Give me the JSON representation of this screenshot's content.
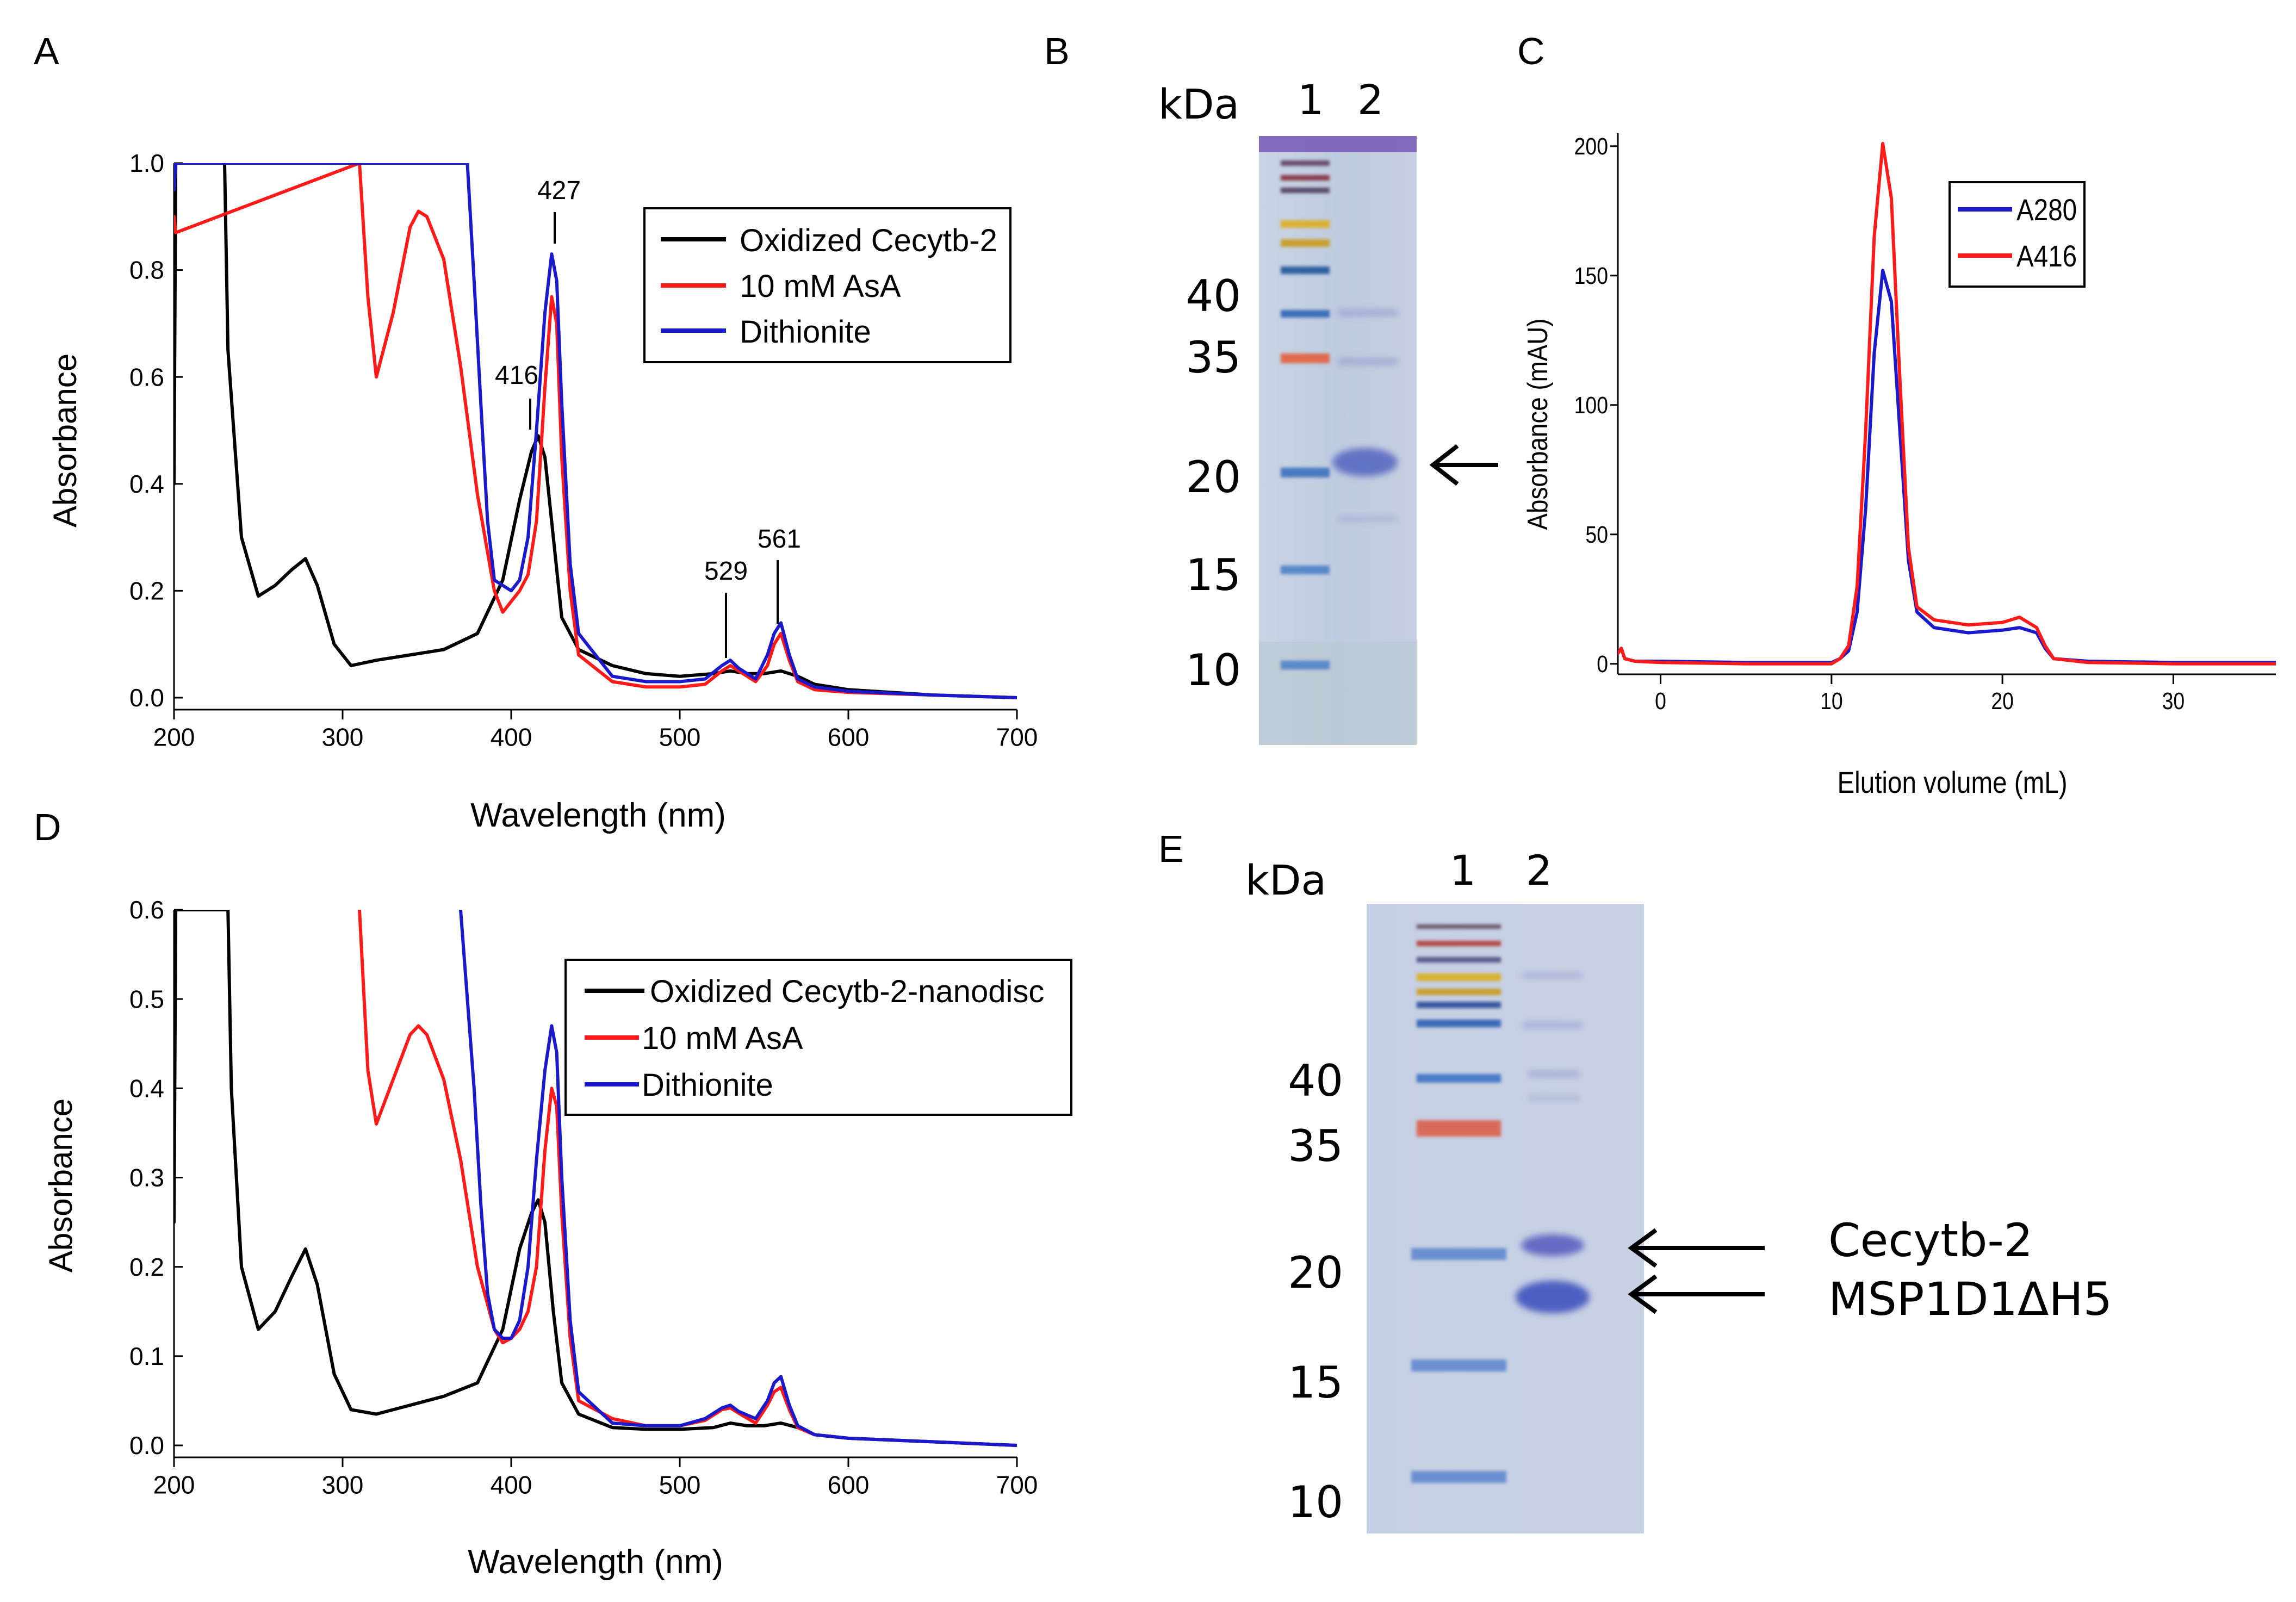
{
  "figure": {
    "panels": {
      "A": {
        "label": "A"
      },
      "B": {
        "label": "B",
        "kda_label": "kDa",
        "lanes": [
          "1",
          "2"
        ],
        "markers": [
          "40",
          "35",
          "20",
          "15",
          "10"
        ]
      },
      "C": {
        "label": "C"
      },
      "D": {
        "label": "D"
      },
      "E": {
        "label": "E",
        "kda_label": "kDa",
        "lanes": [
          "1",
          "2"
        ],
        "markers": [
          "40",
          "35",
          "20",
          "15",
          "10"
        ],
        "arrow_labels": [
          "Cecytb-2",
          "MSP1D1ΔH5"
        ]
      }
    }
  },
  "chart_data": [
    {
      "id": "A",
      "type": "line",
      "xlabel": "Wavelength (nm)",
      "ylabel": "Absorbance",
      "xlim": [
        200,
        700
      ],
      "ylim": [
        0,
        1.0
      ],
      "xticks": [
        "200",
        "300",
        "400",
        "500",
        "600",
        "700"
      ],
      "yticks": [
        "0.0",
        "0.2",
        "0.4",
        "0.6",
        "0.8",
        "1.0"
      ],
      "legend": [
        "Oxidized Cecytb-2",
        "10 mM AsA",
        "Dithionite"
      ],
      "annotations": [
        "416",
        "427",
        "529",
        "561"
      ],
      "series": [
        {
          "name": "Oxidized Cecytb-2",
          "color": "#000000",
          "x": [
            200,
            201,
            202,
            203,
            230,
            232,
            240,
            250,
            260,
            270,
            278,
            285,
            295,
            305,
            320,
            340,
            360,
            380,
            395,
            405,
            412,
            416,
            420,
            425,
            430,
            440,
            460,
            480,
            500,
            520,
            530,
            540,
            550,
            560,
            570,
            580,
            600,
            650,
            700
          ],
          "y": [
            0.4,
            1.0,
            1.0,
            1.0,
            1.0,
            0.65,
            0.3,
            0.19,
            0.21,
            0.24,
            0.26,
            0.21,
            0.1,
            0.06,
            0.07,
            0.08,
            0.09,
            0.12,
            0.22,
            0.37,
            0.46,
            0.49,
            0.45,
            0.3,
            0.15,
            0.09,
            0.06,
            0.045,
            0.04,
            0.045,
            0.05,
            0.045,
            0.045,
            0.05,
            0.04,
            0.025,
            0.015,
            0.005,
            0.0
          ]
        },
        {
          "name": "10 mM AsA",
          "color": "#ff1a1a",
          "x": [
            200,
            201,
            310,
            315,
            320,
            330,
            340,
            345,
            350,
            360,
            370,
            380,
            390,
            395,
            400,
            405,
            410,
            415,
            420,
            424,
            427,
            430,
            435,
            440,
            460,
            480,
            500,
            515,
            525,
            530,
            535,
            545,
            552,
            556,
            560,
            565,
            570,
            580,
            600,
            650,
            700
          ],
          "y": [
            0.9,
            0.87,
            1.0,
            0.75,
            0.6,
            0.72,
            0.88,
            0.91,
            0.9,
            0.82,
            0.62,
            0.38,
            0.2,
            0.16,
            0.18,
            0.2,
            0.23,
            0.33,
            0.58,
            0.75,
            0.7,
            0.45,
            0.2,
            0.08,
            0.03,
            0.02,
            0.02,
            0.025,
            0.05,
            0.06,
            0.05,
            0.03,
            0.06,
            0.1,
            0.12,
            0.07,
            0.03,
            0.015,
            0.01,
            0.005,
            0.0
          ]
        },
        {
          "name": "Dithionite",
          "color": "#1a1acc",
          "x": [
            200,
            201,
            374,
            378,
            382,
            386,
            390,
            395,
            400,
            405,
            410,
            415,
            420,
            424,
            427,
            430,
            435,
            440,
            460,
            480,
            500,
            515,
            525,
            530,
            535,
            545,
            552,
            556,
            560,
            565,
            570,
            580,
            600,
            650,
            700
          ],
          "y": [
            0.95,
            1.0,
            1.0,
            0.78,
            0.55,
            0.33,
            0.22,
            0.21,
            0.2,
            0.22,
            0.3,
            0.5,
            0.72,
            0.83,
            0.78,
            0.55,
            0.25,
            0.12,
            0.04,
            0.03,
            0.03,
            0.035,
            0.06,
            0.07,
            0.055,
            0.035,
            0.08,
            0.12,
            0.14,
            0.08,
            0.035,
            0.02,
            0.012,
            0.005,
            0.0
          ]
        }
      ]
    },
    {
      "id": "C",
      "type": "line",
      "xlabel": "Elution volume (mL)",
      "ylabel": "Absorbance (mAU)",
      "xlim": [
        -2.5,
        36
      ],
      "ylim": [
        -3,
        205
      ],
      "xticks": [
        "0",
        "10",
        "20",
        "30"
      ],
      "yticks": [
        "0",
        "50",
        "100",
        "150",
        "200"
      ],
      "legend": [
        "A280",
        "A416"
      ],
      "series": [
        {
          "name": "A280",
          "color": "#1a1acc",
          "x": [
            -2.5,
            -2.3,
            -2.1,
            -1.5,
            0,
            5,
            10,
            10.5,
            11,
            11.5,
            12,
            12.5,
            13,
            13.5,
            14,
            14.5,
            15,
            16,
            18,
            20,
            21,
            22,
            22.5,
            23,
            25,
            30,
            36
          ],
          "y": [
            4,
            6,
            2,
            1,
            1,
            0.5,
            0.5,
            2,
            5,
            20,
            60,
            120,
            152,
            140,
            90,
            40,
            20,
            14,
            12,
            13,
            14,
            12,
            6,
            2,
            1,
            0.5,
            0.5
          ]
        },
        {
          "name": "A416",
          "color": "#ff1a1a",
          "x": [
            -2.5,
            -2.3,
            -2.1,
            -1.5,
            0,
            5,
            10,
            10.5,
            11,
            11.5,
            12,
            12.5,
            13,
            13.5,
            14,
            14.5,
            15,
            16,
            18,
            20,
            21,
            22,
            22.5,
            23,
            25,
            30,
            36
          ],
          "y": [
            4,
            6,
            2,
            1,
            0.5,
            0,
            0,
            2,
            7,
            30,
            90,
            165,
            201,
            180,
            110,
            45,
            22,
            17,
            15,
            16,
            18,
            14,
            7,
            2,
            0.5,
            0,
            0
          ]
        }
      ]
    },
    {
      "id": "D",
      "type": "line",
      "xlabel": "Wavelength (nm)",
      "ylabel": "Absorbance",
      "xlim": [
        200,
        700
      ],
      "ylim": [
        0,
        0.6
      ],
      "xticks": [
        "200",
        "300",
        "400",
        "500",
        "600",
        "700"
      ],
      "yticks": [
        "0.0",
        "0.1",
        "0.2",
        "0.3",
        "0.4",
        "0.5",
        "0.6"
      ],
      "legend": [
        "Oxidized Cecytb-2-nanodisc",
        "10 mM AsA",
        "Dithionite"
      ],
      "series": [
        {
          "name": "Oxidized Cecytb-2-nanodisc",
          "color": "#000000",
          "x": [
            200,
            201,
            202,
            203,
            232,
            234,
            240,
            250,
            260,
            270,
            278,
            285,
            295,
            305,
            320,
            340,
            360,
            380,
            395,
            405,
            412,
            416,
            420,
            425,
            430,
            440,
            460,
            480,
            500,
            520,
            530,
            540,
            550,
            560,
            570,
            580,
            600,
            650,
            700
          ],
          "y": [
            0.25,
            0.6,
            0.6,
            0.6,
            0.6,
            0.4,
            0.2,
            0.13,
            0.15,
            0.19,
            0.22,
            0.18,
            0.08,
            0.04,
            0.035,
            0.045,
            0.055,
            0.07,
            0.13,
            0.22,
            0.26,
            0.275,
            0.25,
            0.15,
            0.07,
            0.035,
            0.02,
            0.018,
            0.018,
            0.02,
            0.025,
            0.022,
            0.022,
            0.025,
            0.02,
            0.012,
            0.008,
            0.004,
            0.0
          ]
        },
        {
          "name": "10 mM AsA",
          "color": "#ff1a1a",
          "x": [
            310,
            315,
            320,
            330,
            340,
            345,
            350,
            360,
            370,
            380,
            390,
            395,
            400,
            405,
            410,
            415,
            420,
            424,
            427,
            430,
            435,
            440,
            460,
            480,
            500,
            515,
            525,
            530,
            535,
            545,
            552,
            556,
            560,
            565,
            570,
            580,
            600,
            650,
            700
          ],
          "y": [
            0.6,
            0.42,
            0.36,
            0.41,
            0.46,
            0.47,
            0.46,
            0.41,
            0.32,
            0.2,
            0.13,
            0.115,
            0.12,
            0.13,
            0.15,
            0.2,
            0.33,
            0.4,
            0.38,
            0.26,
            0.12,
            0.05,
            0.03,
            0.022,
            0.022,
            0.028,
            0.04,
            0.042,
            0.036,
            0.025,
            0.045,
            0.06,
            0.065,
            0.04,
            0.02,
            0.012,
            0.008,
            0.004,
            0.0
          ]
        },
        {
          "name": "Dithionite",
          "color": "#1a1acc",
          "x": [
            370,
            374,
            378,
            382,
            386,
            390,
            395,
            400,
            405,
            410,
            415,
            420,
            424,
            427,
            430,
            435,
            440,
            460,
            480,
            500,
            515,
            525,
            530,
            535,
            545,
            552,
            556,
            560,
            565,
            570,
            580,
            600,
            650,
            700
          ],
          "y": [
            0.6,
            0.5,
            0.4,
            0.27,
            0.17,
            0.13,
            0.12,
            0.12,
            0.14,
            0.2,
            0.32,
            0.42,
            0.47,
            0.44,
            0.3,
            0.14,
            0.06,
            0.025,
            0.022,
            0.022,
            0.03,
            0.042,
            0.045,
            0.038,
            0.03,
            0.05,
            0.07,
            0.077,
            0.045,
            0.022,
            0.012,
            0.008,
            0.004,
            0.0
          ]
        }
      ]
    }
  ]
}
